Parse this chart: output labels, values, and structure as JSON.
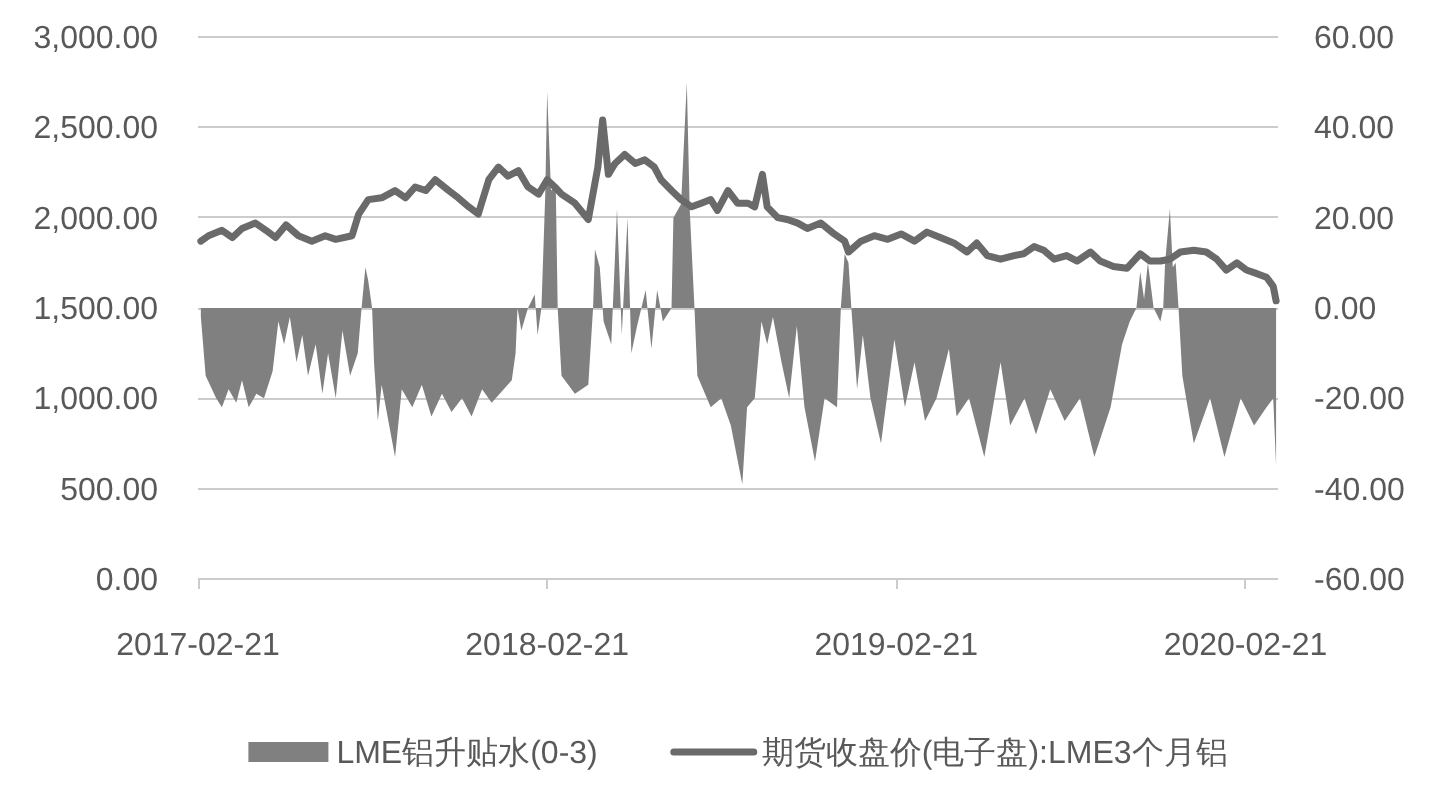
{
  "chart_data": {
    "type": "line",
    "xlim": [
      "2017-02-21",
      "2020-03-26"
    ],
    "xticks": [
      "2017-02-21",
      "2018-02-21",
      "2019-02-21",
      "2020-02-21"
    ],
    "ylim": [
      0,
      3000
    ],
    "yticks": [
      {
        "value": 0,
        "label": "0.00"
      },
      {
        "value": 500,
        "label": "500.00"
      },
      {
        "value": 1000,
        "label": "1,000.00"
      },
      {
        "value": 1500,
        "label": "1,500.00"
      },
      {
        "value": 2000,
        "label": "2,000.00"
      },
      {
        "value": 2500,
        "label": "2,500.00"
      },
      {
        "value": 3000,
        "label": "3,000.00"
      }
    ],
    "y2lim": [
      -60,
      60
    ],
    "y2ticks": [
      {
        "value": -60,
        "label": "-60.00"
      },
      {
        "value": -40,
        "label": "-40.00"
      },
      {
        "value": -20,
        "label": "-20.00"
      },
      {
        "value": 0,
        "label": "0.00"
      },
      {
        "value": 20,
        "label": "20.00"
      },
      {
        "value": 40,
        "label": "40.00"
      },
      {
        "value": 60,
        "label": "60.00"
      }
    ],
    "grid": "y",
    "legend": "bottom",
    "series": [
      {
        "name": "LME铝升贴水(0-3)",
        "type": "area",
        "axis": "y2",
        "color": "#808080",
        "x": [
          "2017-02-24",
          "2017-03-01",
          "2017-03-12",
          "2017-03-18",
          "2017-03-25",
          "2017-04-02",
          "2017-04-08",
          "2017-04-15",
          "2017-04-23",
          "2017-05-01",
          "2017-05-10",
          "2017-05-16",
          "2017-05-22",
          "2017-05-28",
          "2017-06-04",
          "2017-06-10",
          "2017-06-16",
          "2017-06-24",
          "2017-07-01",
          "2017-07-07",
          "2017-07-15",
          "2017-07-22",
          "2017-07-30",
          "2017-08-07",
          "2017-08-11",
          "2017-08-15",
          "2017-08-18",
          "2017-08-22",
          "2017-08-24",
          "2017-08-28",
          "2017-09-01",
          "2017-09-15",
          "2017-09-22",
          "2017-10-03",
          "2017-10-13",
          "2017-10-23",
          "2017-11-03",
          "2017-11-13",
          "2017-11-24",
          "2017-12-04",
          "2017-12-15",
          "2017-12-25",
          "2018-01-15",
          "2018-01-19",
          "2018-01-21",
          "2018-01-25",
          "2018-02-01",
          "2018-02-08",
          "2018-02-11",
          "2018-02-15",
          "2018-02-19",
          "2018-02-21",
          "2018-02-25",
          "2018-03-02",
          "2018-03-04",
          "2018-03-08",
          "2018-03-22",
          "2018-04-05",
          "2018-04-10",
          "2018-04-12",
          "2018-04-17",
          "2018-04-21",
          "2018-04-29",
          "2018-05-05",
          "2018-05-10",
          "2018-05-16",
          "2018-05-20",
          "2018-05-26",
          "2018-06-04",
          "2018-06-10",
          "2018-06-16",
          "2018-06-22",
          "2018-07-01",
          "2018-07-03",
          "2018-07-11",
          "2018-07-17",
          "2018-07-20",
          "2018-07-25",
          "2018-07-28",
          "2018-08-11",
          "2018-08-22",
          "2018-09-01",
          "2018-09-13",
          "2018-09-18",
          "2018-09-26",
          "2018-10-03",
          "2018-10-09",
          "2018-10-15",
          "2018-10-24",
          "2018-11-01",
          "2018-11-09",
          "2018-11-17",
          "2018-11-28",
          "2018-12-08",
          "2018-12-21",
          "2018-12-25",
          "2018-12-29",
          "2019-01-02",
          "2019-01-05",
          "2019-01-11",
          "2019-01-17",
          "2019-01-25",
          "2019-02-05",
          "2019-02-19",
          "2019-03-02",
          "2019-03-12",
          "2019-03-23",
          "2019-04-04",
          "2019-04-17",
          "2019-04-25",
          "2019-05-08",
          "2019-05-24",
          "2019-06-02",
          "2019-06-10",
          "2019-06-20",
          "2019-07-05",
          "2019-07-17",
          "2019-08-01",
          "2019-08-16",
          "2019-09-01",
          "2019-09-16",
          "2019-10-03",
          "2019-10-15",
          "2019-10-23",
          "2019-10-30",
          "2019-11-03",
          "2019-11-07",
          "2019-11-11",
          "2019-11-17",
          "2019-11-24",
          "2019-11-27",
          "2019-11-29",
          "2019-12-04",
          "2019-12-07",
          "2019-12-10",
          "2019-12-13",
          "2019-12-17",
          "2019-12-29",
          "2020-01-15",
          "2020-01-30",
          "2020-02-16",
          "2020-03-01",
          "2020-03-14",
          "2020-03-21",
          "2020-03-24"
        ],
        "values": [
          -2,
          -15,
          -20,
          -22,
          -18,
          -21,
          -16,
          -22,
          -19,
          -20,
          -14,
          -3,
          -8,
          -2,
          -12,
          -6,
          -15,
          -8,
          -19,
          -10,
          -20,
          -5,
          -15,
          -10,
          0,
          9,
          6,
          0,
          -12,
          -25,
          -17,
          -33,
          -18,
          -22,
          -17,
          -24,
          -19,
          -23,
          -20,
          -24,
          -18,
          -21,
          -16,
          -10,
          0,
          -5,
          0,
          3,
          -6,
          0,
          25,
          48,
          26,
          27,
          0,
          -15,
          -19,
          -17,
          0,
          13,
          9,
          -3,
          -8,
          22,
          -6,
          20,
          -10,
          -4,
          4,
          -9,
          4,
          -3,
          0,
          20,
          23,
          50,
          22,
          0,
          -15,
          -22,
          -20,
          -26,
          -39,
          -22,
          -20,
          -3,
          -8,
          -2,
          -12,
          -20,
          -4,
          -22,
          -34,
          -20,
          -22,
          0,
          12,
          10,
          0,
          -18,
          -6,
          -20,
          -30,
          -7,
          -22,
          -12,
          -25,
          -20,
          -9,
          -24,
          -20,
          -33,
          -22,
          -12,
          -26,
          -20,
          -28,
          -18,
          -25,
          -20,
          -33,
          -22,
          -8,
          -3,
          0,
          8,
          2,
          10,
          0,
          -3,
          0,
          10,
          22,
          9,
          10,
          0,
          -15,
          -30,
          -20,
          -33,
          -20,
          -26,
          -22,
          -20,
          -35
        ]
      },
      {
        "name": "期货收盘价(电子盘):LME3个月铝",
        "color": "#6a6a6a",
        "x": [
          "2017-02-24",
          "2017-03-04",
          "2017-03-18",
          "2017-03-29",
          "2017-04-08",
          "2017-04-22",
          "2017-05-03",
          "2017-05-13",
          "2017-05-24",
          "2017-06-06",
          "2017-06-20",
          "2017-07-04",
          "2017-07-15",
          "2017-08-01",
          "2017-08-08",
          "2017-08-18",
          "2017-09-01",
          "2017-09-15",
          "2017-09-26",
          "2017-10-06",
          "2017-10-17",
          "2017-10-27",
          "2017-11-10",
          "2017-11-20",
          "2017-12-01",
          "2017-12-11",
          "2017-12-22",
          "2018-01-01",
          "2018-01-11",
          "2018-01-22",
          "2018-02-01",
          "2018-02-12",
          "2018-02-21",
          "2018-03-01",
          "2018-03-08",
          "2018-03-22",
          "2018-04-05",
          "2018-04-15",
          "2018-04-20",
          "2018-04-26",
          "2018-05-03",
          "2018-05-13",
          "2018-05-24",
          "2018-06-03",
          "2018-06-13",
          "2018-06-20",
          "2018-07-01",
          "2018-07-11",
          "2018-07-22",
          "2018-08-01",
          "2018-08-11",
          "2018-08-18",
          "2018-08-29",
          "2018-09-08",
          "2018-09-19",
          "2018-09-26",
          "2018-10-04",
          "2018-10-09",
          "2018-10-20",
          "2018-10-30",
          "2018-11-10",
          "2018-11-20",
          "2018-12-04",
          "2018-12-18",
          "2018-12-29",
          "2019-01-02",
          "2019-01-15",
          "2019-01-29",
          "2019-02-12",
          "2019-02-26",
          "2019-03-12",
          "2019-03-25",
          "2019-04-08",
          "2019-04-22",
          "2019-05-06",
          "2019-05-16",
          "2019-05-27",
          "2019-06-10",
          "2019-06-24",
          "2019-07-04",
          "2019-07-15",
          "2019-07-25",
          "2019-08-05",
          "2019-08-18",
          "2019-08-29",
          "2019-09-12",
          "2019-09-22",
          "2019-10-06",
          "2019-10-20",
          "2019-11-03",
          "2019-11-13",
          "2019-11-24",
          "2019-12-04",
          "2019-12-15",
          "2019-12-29",
          "2020-01-11",
          "2020-01-22",
          "2020-02-01",
          "2020-02-12",
          "2020-02-22",
          "2020-03-04",
          "2020-03-14",
          "2020-03-21",
          "2020-03-24"
        ],
        "values": [
          1870,
          1900,
          1930,
          1890,
          1940,
          1970,
          1930,
          1890,
          1960,
          1900,
          1870,
          1900,
          1880,
          1900,
          2020,
          2100,
          2110,
          2150,
          2110,
          2170,
          2150,
          2210,
          2150,
          2110,
          2060,
          2020,
          2210,
          2280,
          2230,
          2260,
          2170,
          2130,
          2210,
          2170,
          2130,
          2080,
          1990,
          2280,
          2540,
          2240,
          2300,
          2350,
          2300,
          2320,
          2280,
          2210,
          2150,
          2100,
          2060,
          2080,
          2100,
          2040,
          2150,
          2080,
          2080,
          2060,
          2240,
          2060,
          2000,
          1990,
          1970,
          1940,
          1970,
          1910,
          1870,
          1810,
          1870,
          1900,
          1880,
          1910,
          1870,
          1920,
          1890,
          1860,
          1810,
          1860,
          1790,
          1770,
          1790,
          1800,
          1840,
          1820,
          1770,
          1790,
          1760,
          1810,
          1760,
          1730,
          1720,
          1800,
          1760,
          1760,
          1770,
          1810,
          1820,
          1810,
          1770,
          1710,
          1750,
          1710,
          1690,
          1670,
          1620,
          1540
        ]
      }
    ]
  }
}
